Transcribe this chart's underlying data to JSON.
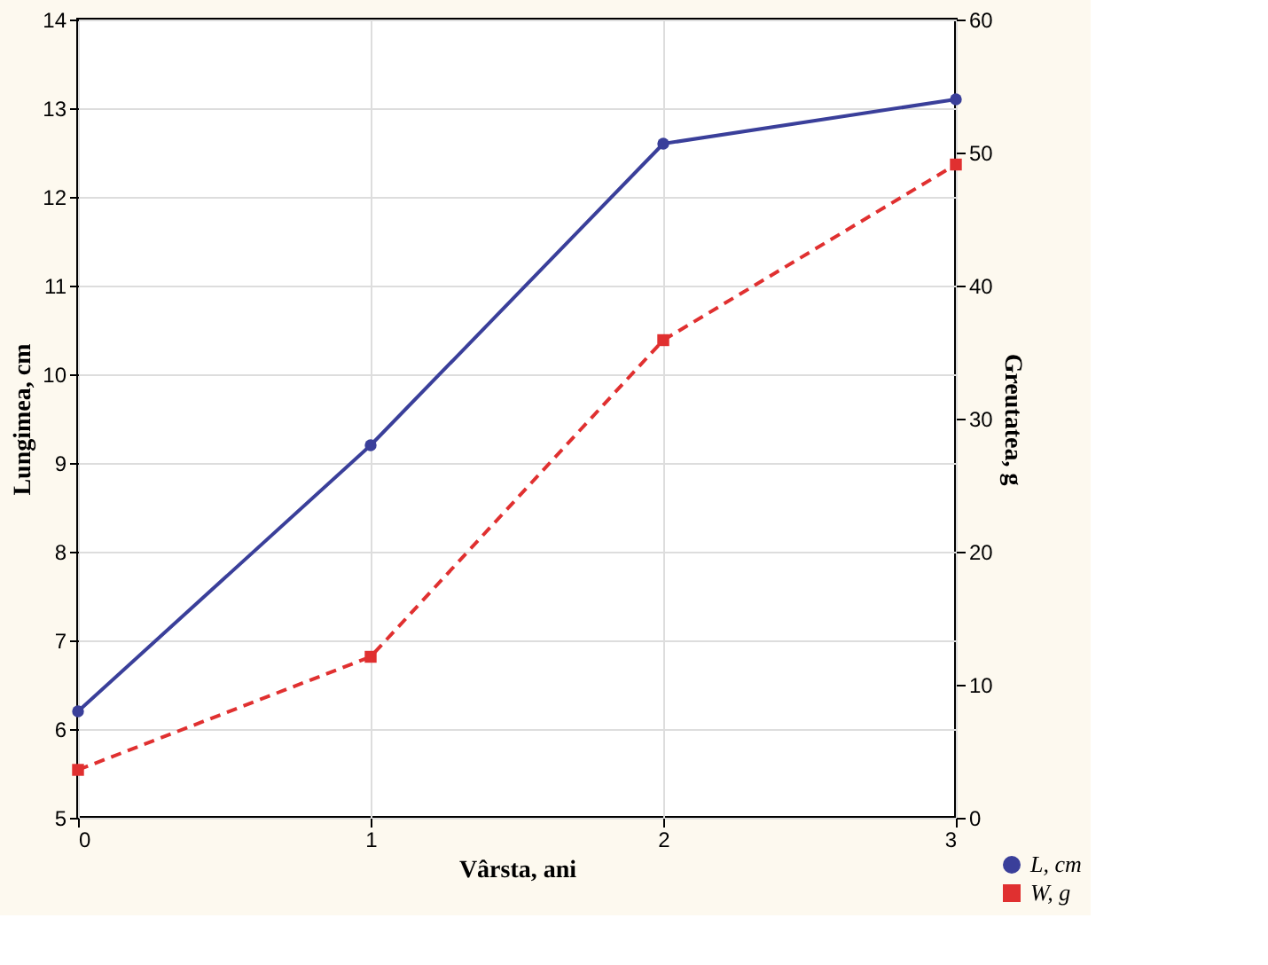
{
  "chart_data": {
    "type": "line",
    "xlabel": "Vârsta, ani",
    "ylabel": "Lungimea, cm",
    "y2label": "Greutatea, g",
    "x": [
      0,
      1,
      2,
      3
    ],
    "xlim": [
      0,
      3
    ],
    "xticks": [
      0,
      1,
      2,
      3
    ],
    "ylim": [
      5,
      14
    ],
    "yticks": [
      5,
      6,
      7,
      8,
      9,
      10,
      11,
      12,
      13,
      14
    ],
    "y2lim": [
      0,
      60
    ],
    "y2ticks": [
      0,
      10,
      20,
      30,
      40,
      50,
      60
    ],
    "series": [
      {
        "name": "L, cm",
        "color": "#3a3f9a",
        "values": [
          6.2,
          9.2,
          12.6,
          13.1
        ],
        "marker": "circle",
        "line_style": "solid"
      },
      {
        "name": "W, g",
        "color": "#e03030",
        "values": [
          3.6,
          12.1,
          35.9,
          49.1
        ],
        "marker": "square",
        "line_style": "dashed",
        "axis": "y2"
      }
    ],
    "grid": true,
    "legend": "bottom right"
  }
}
